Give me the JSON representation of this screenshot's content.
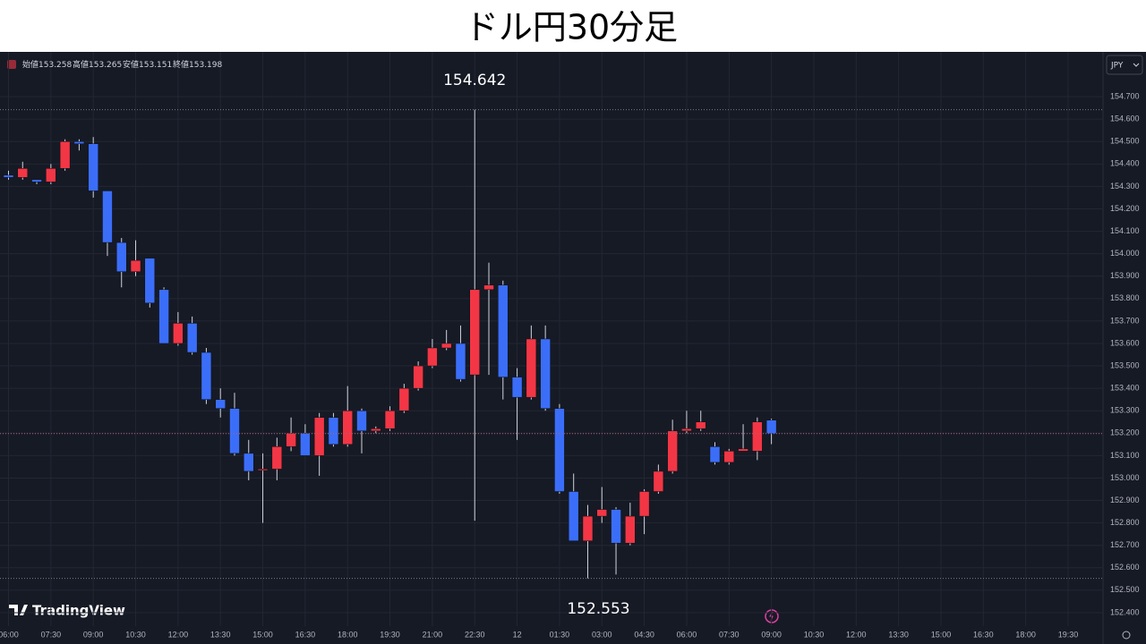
{
  "chart_data": {
    "type": "candlestick",
    "title": "ドル円30分足",
    "ohlc_labels": [
      "始値",
      "高値",
      "安値",
      "終値"
    ],
    "currency": "JPY",
    "brand": "TradingView",
    "up_color": "#f23645",
    "down_color": "#3b6ef8",
    "wick_color": "#d1d4dc",
    "ylim": [
      152.34,
      154.8
    ],
    "yticks": [
      {
        "value": 152.4,
        "label": "152.400"
      },
      {
        "value": 152.5,
        "label": "152.500"
      },
      {
        "value": 152.6,
        "label": "152.600"
      },
      {
        "value": 152.7,
        "label": "152.700"
      },
      {
        "value": 152.8,
        "label": "152.800"
      },
      {
        "value": 152.9,
        "label": "152.900"
      },
      {
        "value": 153.0,
        "label": "153.000"
      },
      {
        "value": 153.1,
        "label": "153.100"
      },
      {
        "value": 153.2,
        "label": "153.200"
      },
      {
        "value": 153.3,
        "label": "153.300"
      },
      {
        "value": 153.4,
        "label": "153.400"
      },
      {
        "value": 153.5,
        "label": "153.500"
      },
      {
        "value": 153.6,
        "label": "153.600"
      },
      {
        "value": 153.7,
        "label": "153.700"
      },
      {
        "value": 153.8,
        "label": "153.800"
      },
      {
        "value": 153.9,
        "label": "153.900"
      },
      {
        "value": 154.0,
        "label": "154.000"
      },
      {
        "value": 154.1,
        "label": "154.100"
      },
      {
        "value": 154.2,
        "label": "154.200"
      },
      {
        "value": 154.3,
        "label": "154.300"
      },
      {
        "value": 154.4,
        "label": "154.400"
      },
      {
        "value": 154.5,
        "label": "154.500"
      },
      {
        "value": 154.6,
        "label": "154.600"
      },
      {
        "value": 154.7,
        "label": "154.700"
      }
    ],
    "grid": true,
    "categories": [
      "06:00",
      null,
      null,
      "07:30",
      null,
      null,
      "09:00",
      null,
      null,
      "10:30",
      null,
      null,
      "12:00",
      null,
      null,
      "13:30",
      null,
      null,
      "15:00",
      null,
      null,
      "16:30",
      null,
      null,
      "18:00",
      null,
      null,
      "19:30",
      null,
      null,
      "21:00",
      null,
      null,
      "22:30",
      null,
      null,
      "12",
      null,
      null,
      "01:30",
      null,
      null,
      "03:00",
      null,
      null,
      "04:30",
      null,
      null,
      "06:00",
      null,
      null,
      "07:30",
      null,
      null,
      "09:00",
      null,
      null,
      "10:30",
      null,
      null,
      "12:00",
      null,
      null,
      "13:30",
      null,
      null,
      "15:00",
      null,
      null,
      "16:30",
      null,
      null,
      "18:00",
      null,
      null,
      "19:30",
      null,
      null
    ],
    "open": [
      154.35,
      154.34,
      154.33,
      154.32,
      154.38,
      154.5,
      154.49,
      154.28,
      154.05,
      153.92,
      153.98,
      153.84,
      153.6,
      153.69,
      153.56,
      153.35,
      153.31,
      153.11,
      153.04,
      153.04,
      153.14,
      153.2,
      153.1,
      153.27,
      153.15,
      153.3,
      153.21,
      153.22,
      153.3,
      153.4,
      153.5,
      153.58,
      153.6,
      153.46,
      153.84,
      153.86,
      153.45,
      153.36,
      153.62,
      153.31,
      152.94,
      152.72,
      152.83,
      152.86,
      152.71,
      152.83,
      152.94,
      153.03,
      153.21,
      153.22,
      153.14,
      153.07,
      153.12,
      153.12,
      153.258,
      null,
      null,
      null,
      null,
      null,
      null,
      null,
      null,
      null,
      null,
      null,
      null,
      null,
      null,
      null,
      null,
      null,
      null,
      null,
      null,
      null,
      null,
      null
    ],
    "high": [
      154.37,
      154.41,
      154.33,
      154.4,
      154.51,
      154.51,
      154.52,
      154.28,
      154.07,
      154.06,
      153.98,
      153.85,
      153.74,
      153.72,
      153.58,
      153.4,
      153.38,
      153.17,
      153.11,
      153.18,
      153.27,
      153.24,
      153.29,
      153.29,
      153.41,
      153.31,
      153.23,
      153.32,
      153.42,
      153.52,
      153.62,
      153.66,
      153.68,
      154.642,
      153.96,
      153.88,
      153.49,
      153.68,
      153.68,
      153.33,
      153.02,
      152.88,
      152.96,
      152.87,
      152.89,
      152.95,
      153.06,
      153.26,
      153.3,
      153.3,
      153.16,
      153.13,
      153.24,
      153.27,
      153.265,
      null,
      null,
      null,
      null,
      null,
      null,
      null,
      null,
      null,
      null,
      null,
      null,
      null,
      null,
      null,
      null,
      null,
      null,
      null,
      null,
      null,
      null,
      null
    ],
    "low": [
      154.33,
      154.33,
      154.31,
      154.31,
      154.37,
      154.46,
      154.25,
      153.99,
      153.85,
      153.9,
      153.76,
      153.6,
      153.59,
      153.55,
      153.33,
      153.27,
      153.1,
      152.99,
      152.8,
      152.99,
      153.12,
      153.1,
      153.01,
      153.14,
      153.14,
      153.11,
      153.2,
      153.21,
      153.29,
      153.39,
      153.49,
      153.57,
      153.43,
      152.81,
      153.46,
      153.35,
      153.17,
      153.35,
      153.3,
      152.93,
      152.72,
      152.553,
      152.8,
      152.57,
      152.7,
      152.75,
      152.93,
      153.02,
      153.2,
      153.21,
      153.06,
      153.06,
      153.12,
      153.08,
      153.151,
      null,
      null,
      null,
      null,
      null,
      null,
      null,
      null,
      null,
      null,
      null,
      null,
      null,
      null,
      null,
      null,
      null,
      null,
      null,
      null,
      null,
      null,
      null
    ],
    "close": [
      154.34,
      154.38,
      154.32,
      154.38,
      154.5,
      154.49,
      154.28,
      154.05,
      153.92,
      153.97,
      153.78,
      153.6,
      153.69,
      153.56,
      153.35,
      153.31,
      153.11,
      153.03,
      153.04,
      153.14,
      153.2,
      153.1,
      153.27,
      153.15,
      153.3,
      153.21,
      153.22,
      153.3,
      153.4,
      153.5,
      153.58,
      153.6,
      153.44,
      153.84,
      153.86,
      153.45,
      153.36,
      153.62,
      153.31,
      152.94,
      152.72,
      152.83,
      152.86,
      152.71,
      152.83,
      152.94,
      153.03,
      153.21,
      153.22,
      153.25,
      153.07,
      153.12,
      153.13,
      153.25,
      153.198,
      null,
      null,
      null,
      null,
      null,
      null,
      null,
      null,
      null,
      null,
      null,
      null,
      null,
      null,
      null,
      null,
      null,
      null,
      null,
      null,
      null,
      null,
      null
    ]
  }
}
